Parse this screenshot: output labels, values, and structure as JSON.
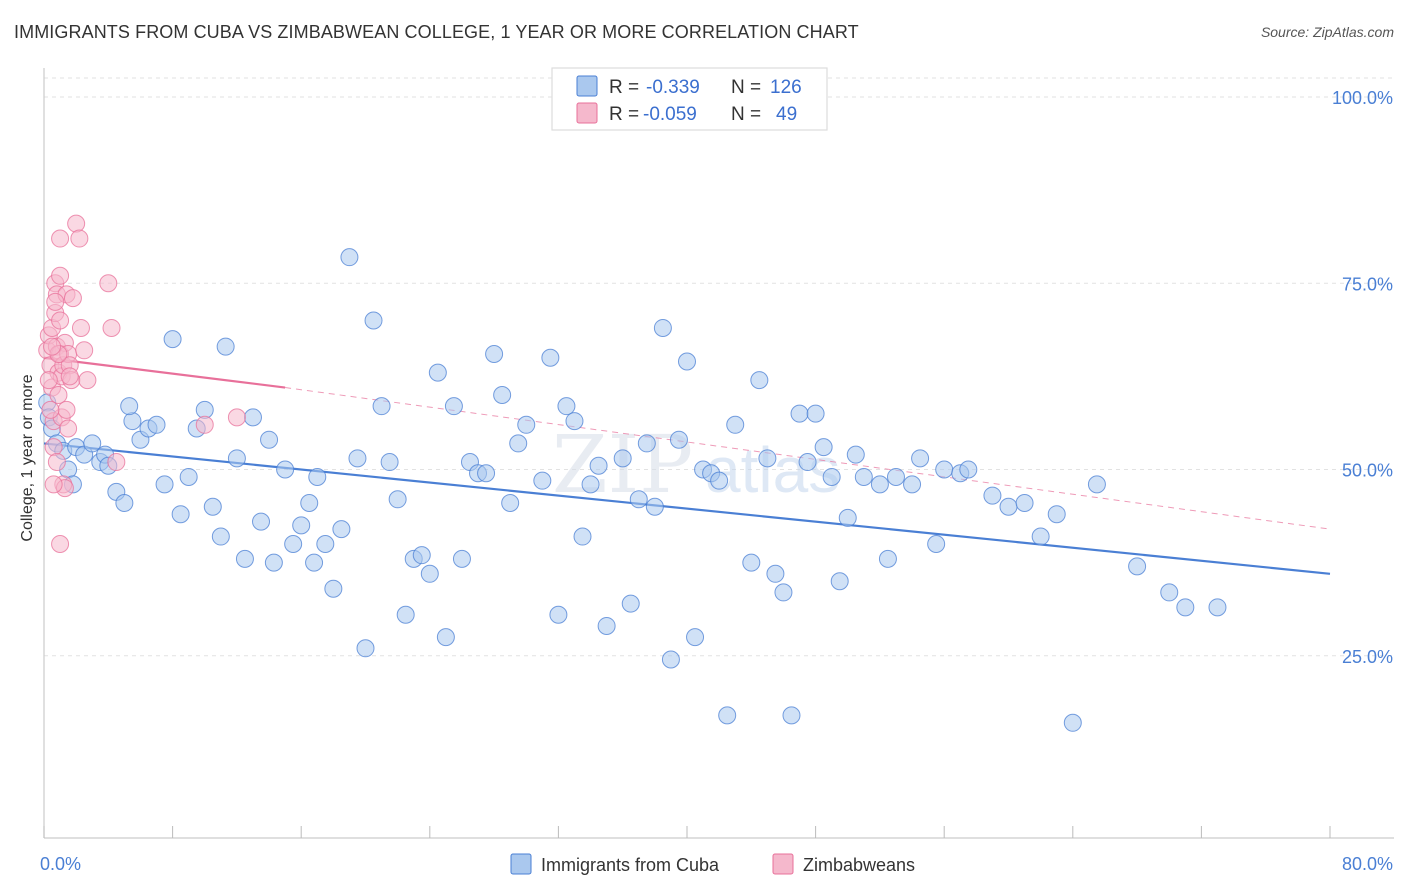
{
  "header": {
    "title": "IMMIGRANTS FROM CUBA VS ZIMBABWEAN COLLEGE, 1 YEAR OR MORE CORRELATION CHART",
    "source": "Source: ZipAtlas.com"
  },
  "legend_box": {
    "rows": [
      {
        "r_label": "R =",
        "r_value": "-0.339",
        "n_label": "N =",
        "n_value": "126"
      },
      {
        "r_label": "R =",
        "r_value": "-0.059",
        "n_label": "N =",
        "n_value": "49"
      }
    ]
  },
  "watermark": {
    "zip": "ZIP",
    "atlas": "atlas"
  },
  "chart_data": {
    "type": "scatter",
    "title": "IMMIGRANTS FROM CUBA VS ZIMBABWEAN COLLEGE, 1 YEAR OR MORE CORRELATION CHART",
    "xlabel": "",
    "ylabel": "College, 1 year or more",
    "xlim": [
      0,
      80
    ],
    "ylim": [
      0,
      105
    ],
    "x_tick_labels": [
      {
        "value": 0,
        "label": "0.0%"
      },
      {
        "value": 80,
        "label": "80.0%"
      }
    ],
    "y_tick_labels": [
      {
        "value": 25,
        "label": "25.0%"
      },
      {
        "value": 50,
        "label": "50.0%"
      },
      {
        "value": 75,
        "label": "75.0%"
      },
      {
        "value": 100,
        "label": "100.0%"
      }
    ],
    "grid": true,
    "legend_position": "bottom",
    "series": [
      {
        "name": "Immigrants from Cuba",
        "color": "#4a7fd4",
        "fill": "#aac8ee",
        "r": -0.339,
        "n": 126,
        "trend": {
          "x": [
            0,
            80
          ],
          "y": [
            53.5,
            36.0
          ],
          "dashed_extension": false
        },
        "points": [
          [
            0.2,
            59
          ],
          [
            0.3,
            57
          ],
          [
            0.5,
            55.5
          ],
          [
            0.8,
            53.5
          ],
          [
            1.2,
            52.5
          ],
          [
            1.5,
            50
          ],
          [
            2,
            53
          ],
          [
            2.5,
            52
          ],
          [
            3,
            53.5
          ],
          [
            3.5,
            51
          ],
          [
            3.8,
            52
          ],
          [
            4,
            50.5
          ],
          [
            1.8,
            48
          ],
          [
            4.5,
            47
          ],
          [
            5,
            45.5
          ],
          [
            5.5,
            56.5
          ],
          [
            5.3,
            58.5
          ],
          [
            6,
            54
          ],
          [
            6.5,
            55.5
          ],
          [
            7,
            56
          ],
          [
            7.5,
            48
          ],
          [
            8,
            67.5
          ],
          [
            8.5,
            44
          ],
          [
            9,
            49
          ],
          [
            9.5,
            55.5
          ],
          [
            10,
            58
          ],
          [
            10.5,
            45
          ],
          [
            11,
            41
          ],
          [
            11.3,
            66.5
          ],
          [
            12,
            51.5
          ],
          [
            12.5,
            38
          ],
          [
            13,
            57
          ],
          [
            13.5,
            43
          ],
          [
            14,
            54
          ],
          [
            14.3,
            37.5
          ],
          [
            15,
            50
          ],
          [
            15.5,
            40
          ],
          [
            16,
            42.5
          ],
          [
            16.5,
            45.5
          ],
          [
            16.8,
            37.5
          ],
          [
            17,
            49
          ],
          [
            17.5,
            40
          ],
          [
            18,
            34
          ],
          [
            18.5,
            42
          ],
          [
            19,
            78.5
          ],
          [
            19.5,
            51.5
          ],
          [
            20,
            26
          ],
          [
            20.5,
            70
          ],
          [
            21,
            58.5
          ],
          [
            21.5,
            51
          ],
          [
            22,
            46
          ],
          [
            22.5,
            30.5
          ],
          [
            23,
            38
          ],
          [
            23.5,
            38.5
          ],
          [
            24,
            36
          ],
          [
            24.5,
            63
          ],
          [
            25,
            27.5
          ],
          [
            25.5,
            58.5
          ],
          [
            26,
            38
          ],
          [
            26.5,
            51
          ],
          [
            27,
            49.5
          ],
          [
            27.5,
            49.5
          ],
          [
            28,
            65.5
          ],
          [
            28.5,
            60
          ],
          [
            29,
            45.5
          ],
          [
            29.5,
            53.5
          ],
          [
            30,
            56
          ],
          [
            31,
            48.5
          ],
          [
            31.5,
            65
          ],
          [
            32,
            30.5
          ],
          [
            32.5,
            58.5
          ],
          [
            33,
            56.5
          ],
          [
            33.5,
            41
          ],
          [
            34,
            48
          ],
          [
            34.5,
            50.5
          ],
          [
            35,
            29
          ],
          [
            36,
            51.5
          ],
          [
            36.5,
            32
          ],
          [
            37,
            46
          ],
          [
            37.5,
            53.5
          ],
          [
            38,
            45
          ],
          [
            38.5,
            69
          ],
          [
            39,
            24.5
          ],
          [
            39.5,
            54
          ],
          [
            40,
            64.5
          ],
          [
            40.5,
            27.5
          ],
          [
            41,
            50
          ],
          [
            41.5,
            49.5
          ],
          [
            42,
            48.5
          ],
          [
            42.5,
            17
          ],
          [
            43,
            56
          ],
          [
            44,
            37.5
          ],
          [
            44.5,
            62
          ],
          [
            45,
            51.5
          ],
          [
            45.5,
            36
          ],
          [
            46,
            33.5
          ],
          [
            46.5,
            17
          ],
          [
            47,
            57.5
          ],
          [
            47.5,
            51
          ],
          [
            48,
            57.5
          ],
          [
            48.5,
            53
          ],
          [
            49,
            49
          ],
          [
            49.5,
            35
          ],
          [
            50,
            43.5
          ],
          [
            50.5,
            52
          ],
          [
            51,
            49
          ],
          [
            52,
            48
          ],
          [
            52.5,
            38
          ],
          [
            53,
            49
          ],
          [
            54,
            48
          ],
          [
            54.5,
            51.5
          ],
          [
            55.5,
            40
          ],
          [
            56,
            50
          ],
          [
            57,
            49.5
          ],
          [
            57.5,
            50
          ],
          [
            59,
            46.5
          ],
          [
            60,
            45
          ],
          [
            61,
            45.5
          ],
          [
            62,
            41
          ],
          [
            63,
            44
          ],
          [
            64,
            16
          ],
          [
            65.5,
            48
          ],
          [
            68,
            37
          ],
          [
            70,
            33.5
          ],
          [
            71,
            31.5
          ],
          [
            73,
            31.5
          ]
        ]
      },
      {
        "name": "Zimbabweans",
        "color": "#e8709a",
        "fill": "#f5b8cc",
        "r": -0.059,
        "n": 49,
        "trend": {
          "x": [
            0,
            15
          ],
          "y": [
            65.0,
            61.0
          ],
          "dashed_extension": {
            "x": [
              15,
              80
            ],
            "y": [
              61.0,
              42.0
            ]
          }
        },
        "points": [
          [
            0.2,
            66
          ],
          [
            0.3,
            68
          ],
          [
            0.4,
            64
          ],
          [
            0.5,
            69
          ],
          [
            0.5,
            61
          ],
          [
            0.6,
            56.5
          ],
          [
            0.6,
            53
          ],
          [
            0.7,
            75
          ],
          [
            0.7,
            71
          ],
          [
            0.8,
            73.5
          ],
          [
            0.8,
            66.5
          ],
          [
            0.9,
            63
          ],
          [
            0.9,
            60
          ],
          [
            1,
            76
          ],
          [
            1,
            70
          ],
          [
            1,
            65.5
          ],
          [
            1.1,
            62.5
          ],
          [
            1.1,
            57
          ],
          [
            1.2,
            64
          ],
          [
            1.2,
            48
          ],
          [
            1.3,
            67
          ],
          [
            1.3,
            47.5
          ],
          [
            1.4,
            73.5
          ],
          [
            1.4,
            58
          ],
          [
            1.5,
            65.5
          ],
          [
            1.5,
            55.5
          ],
          [
            1.6,
            64
          ],
          [
            1.7,
            62
          ],
          [
            1.8,
            73
          ],
          [
            2,
            83
          ],
          [
            2.2,
            81
          ],
          [
            2.3,
            69
          ],
          [
            2.5,
            66
          ],
          [
            2.7,
            62
          ],
          [
            1,
            81
          ],
          [
            0.8,
            51
          ],
          [
            0.6,
            48
          ],
          [
            1,
            40
          ],
          [
            4,
            75
          ],
          [
            4.2,
            69
          ],
          [
            4.5,
            51
          ],
          [
            10,
            56
          ],
          [
            12,
            57
          ],
          [
            0.4,
            58
          ],
          [
            0.9,
            65.5
          ],
          [
            1.6,
            62.5
          ],
          [
            0.5,
            66.5
          ],
          [
            0.7,
            72.5
          ],
          [
            0.3,
            62
          ]
        ]
      }
    ]
  }
}
